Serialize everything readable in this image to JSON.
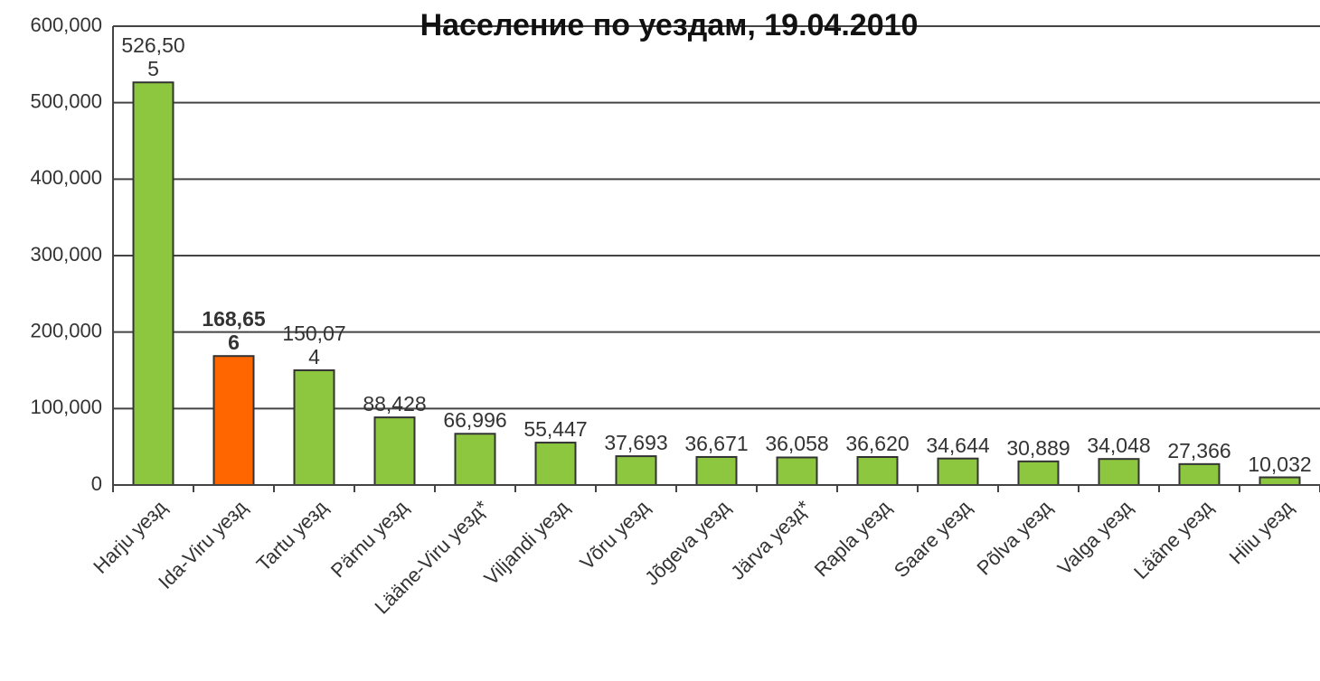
{
  "chart_data": {
    "type": "bar",
    "title": "Население по уездам, 19.04.2010",
    "categories": [
      "Harju уезд",
      "Ida-Viru уезд",
      "Tartu уезд",
      "Pärnu уезд",
      "Lääne-Viru уезд*",
      "Viljandi уезд",
      "Võru уезд",
      "Jõgeva уезд",
      "Järva уезд*",
      "Rapla уезд",
      "Saare уезд",
      "Põlva уезд",
      "Valga уезд",
      "Lääne уезд",
      "Hiiu уезд"
    ],
    "values": [
      526505,
      168656,
      150074,
      88428,
      66996,
      55447,
      37693,
      36671,
      36058,
      36620,
      34644,
      30889,
      34048,
      27366,
      10032
    ],
    "value_labels": [
      "526,505",
      "168,656",
      "150,074",
      "88,428",
      "66,996",
      "55,447",
      "37,693",
      "36,671",
      "36,058",
      "36,620",
      "34,644",
      "30,889",
      "34,048",
      "27,366",
      "10,032"
    ],
    "colors": [
      "#8dc63f",
      "#ff6600",
      "#8dc63f",
      "#8dc63f",
      "#8dc63f",
      "#8dc63f",
      "#8dc63f",
      "#8dc63f",
      "#8dc63f",
      "#8dc63f",
      "#8dc63f",
      "#8dc63f",
      "#8dc63f",
      "#8dc63f",
      "#8dc63f"
    ],
    "bold_labels": [
      false,
      true,
      false,
      false,
      false,
      false,
      false,
      false,
      false,
      false,
      false,
      false,
      false,
      false,
      false
    ],
    "ylim": [
      0,
      600000
    ],
    "yticks": [
      0,
      {
        "value": 100000,
        "label": "100,000"
      },
      {
        "value": 200000,
        "label": "200,000"
      },
      {
        "value": 300000,
        "label": "300,000"
      },
      {
        "value": 400000,
        "label": "400,000"
      },
      {
        "value": 500000,
        "label": "500,000"
      },
      {
        "value": 600000,
        "label": "600,000"
      }
    ],
    "grid": true
  }
}
